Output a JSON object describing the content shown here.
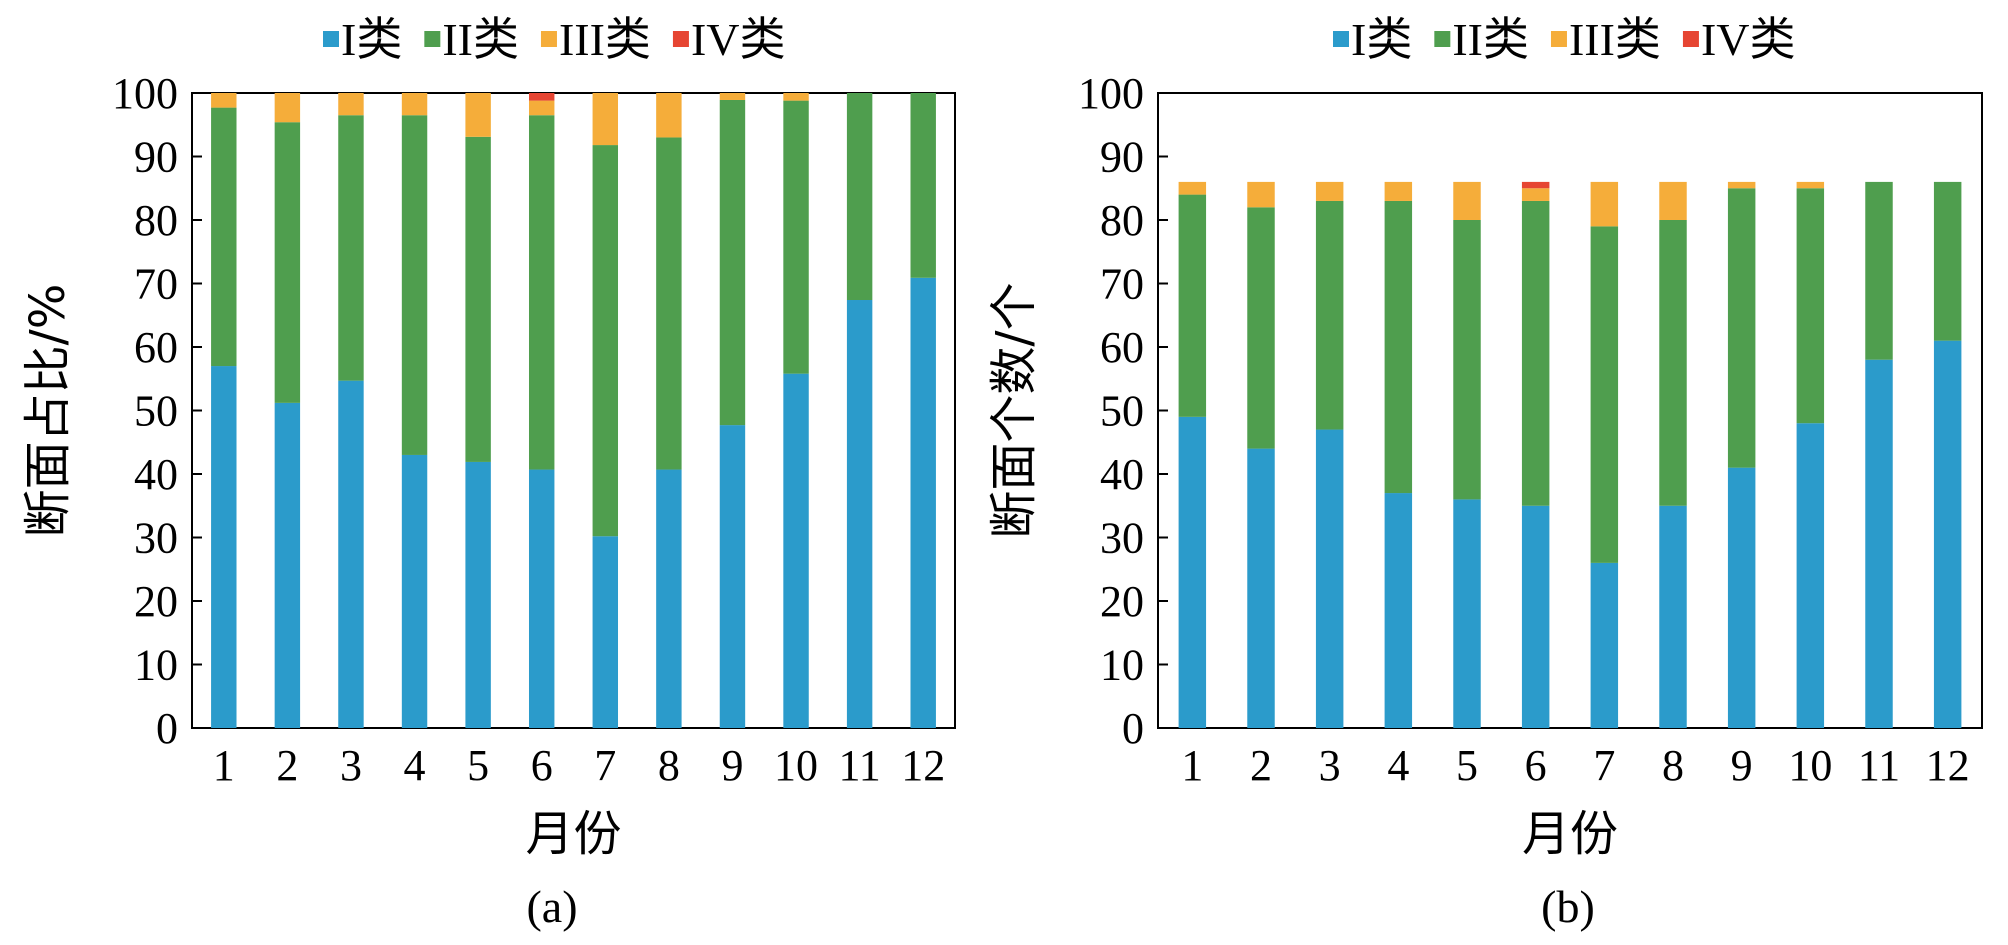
{
  "colors": {
    "I": "#2b9bcb",
    "II": "#4f9e4e",
    "III": "#f5ad3a",
    "IV": "#e64532"
  },
  "chart_data": [
    {
      "type": "bar",
      "stacked": true,
      "caption": "(a)",
      "xlabel": "月份",
      "ylabel": "断面占比/%",
      "ylim": [
        0,
        100
      ],
      "yticks": [
        0,
        10,
        20,
        30,
        40,
        50,
        60,
        70,
        80,
        90,
        100
      ],
      "legend_position": "top",
      "categories": [
        "1",
        "2",
        "3",
        "4",
        "5",
        "6",
        "7",
        "8",
        "9",
        "10",
        "11",
        "12"
      ],
      "series": [
        {
          "name": "I类",
          "key": "I",
          "values": [
            57.0,
            51.2,
            54.7,
            43.0,
            41.9,
            40.7,
            30.2,
            40.7,
            47.7,
            55.8,
            67.4,
            70.9
          ]
        },
        {
          "name": "II类",
          "key": "II",
          "values": [
            40.7,
            44.2,
            41.8,
            53.5,
            51.2,
            55.8,
            61.6,
            52.3,
            51.2,
            43.0,
            32.6,
            29.1
          ]
        },
        {
          "name": "III类",
          "key": "III",
          "values": [
            2.3,
            4.6,
            3.5,
            3.5,
            6.9,
            2.3,
            8.2,
            7.0,
            1.1,
            1.2,
            0.0,
            0.0
          ]
        },
        {
          "name": "IV类",
          "key": "IV",
          "values": [
            0,
            0,
            0,
            0,
            0,
            1.2,
            0,
            0,
            0,
            0,
            0,
            0
          ]
        }
      ]
    },
    {
      "type": "bar",
      "stacked": true,
      "caption": "(b)",
      "xlabel": "月份",
      "ylabel": "断面个数/个",
      "ylim": [
        0,
        100
      ],
      "yticks": [
        0,
        10,
        20,
        30,
        40,
        50,
        60,
        70,
        80,
        90,
        100
      ],
      "legend_position": "top",
      "categories": [
        "1",
        "2",
        "3",
        "4",
        "5",
        "6",
        "7",
        "8",
        "9",
        "10",
        "11",
        "12"
      ],
      "series": [
        {
          "name": "I类",
          "key": "I",
          "values": [
            49,
            44,
            47,
            37,
            36,
            35,
            26,
            35,
            41,
            48,
            58,
            61
          ]
        },
        {
          "name": "II类",
          "key": "II",
          "values": [
            35,
            38,
            36,
            46,
            44,
            48,
            53,
            45,
            44,
            37,
            28,
            25
          ]
        },
        {
          "name": "III类",
          "key": "III",
          "values": [
            2,
            4,
            3,
            3,
            6,
            2,
            7,
            6,
            1,
            1,
            0,
            0
          ]
        },
        {
          "name": "IV类",
          "key": "IV",
          "values": [
            0,
            0,
            0,
            0,
            0,
            1,
            0,
            0,
            0,
            0,
            0,
            0
          ]
        }
      ]
    }
  ]
}
